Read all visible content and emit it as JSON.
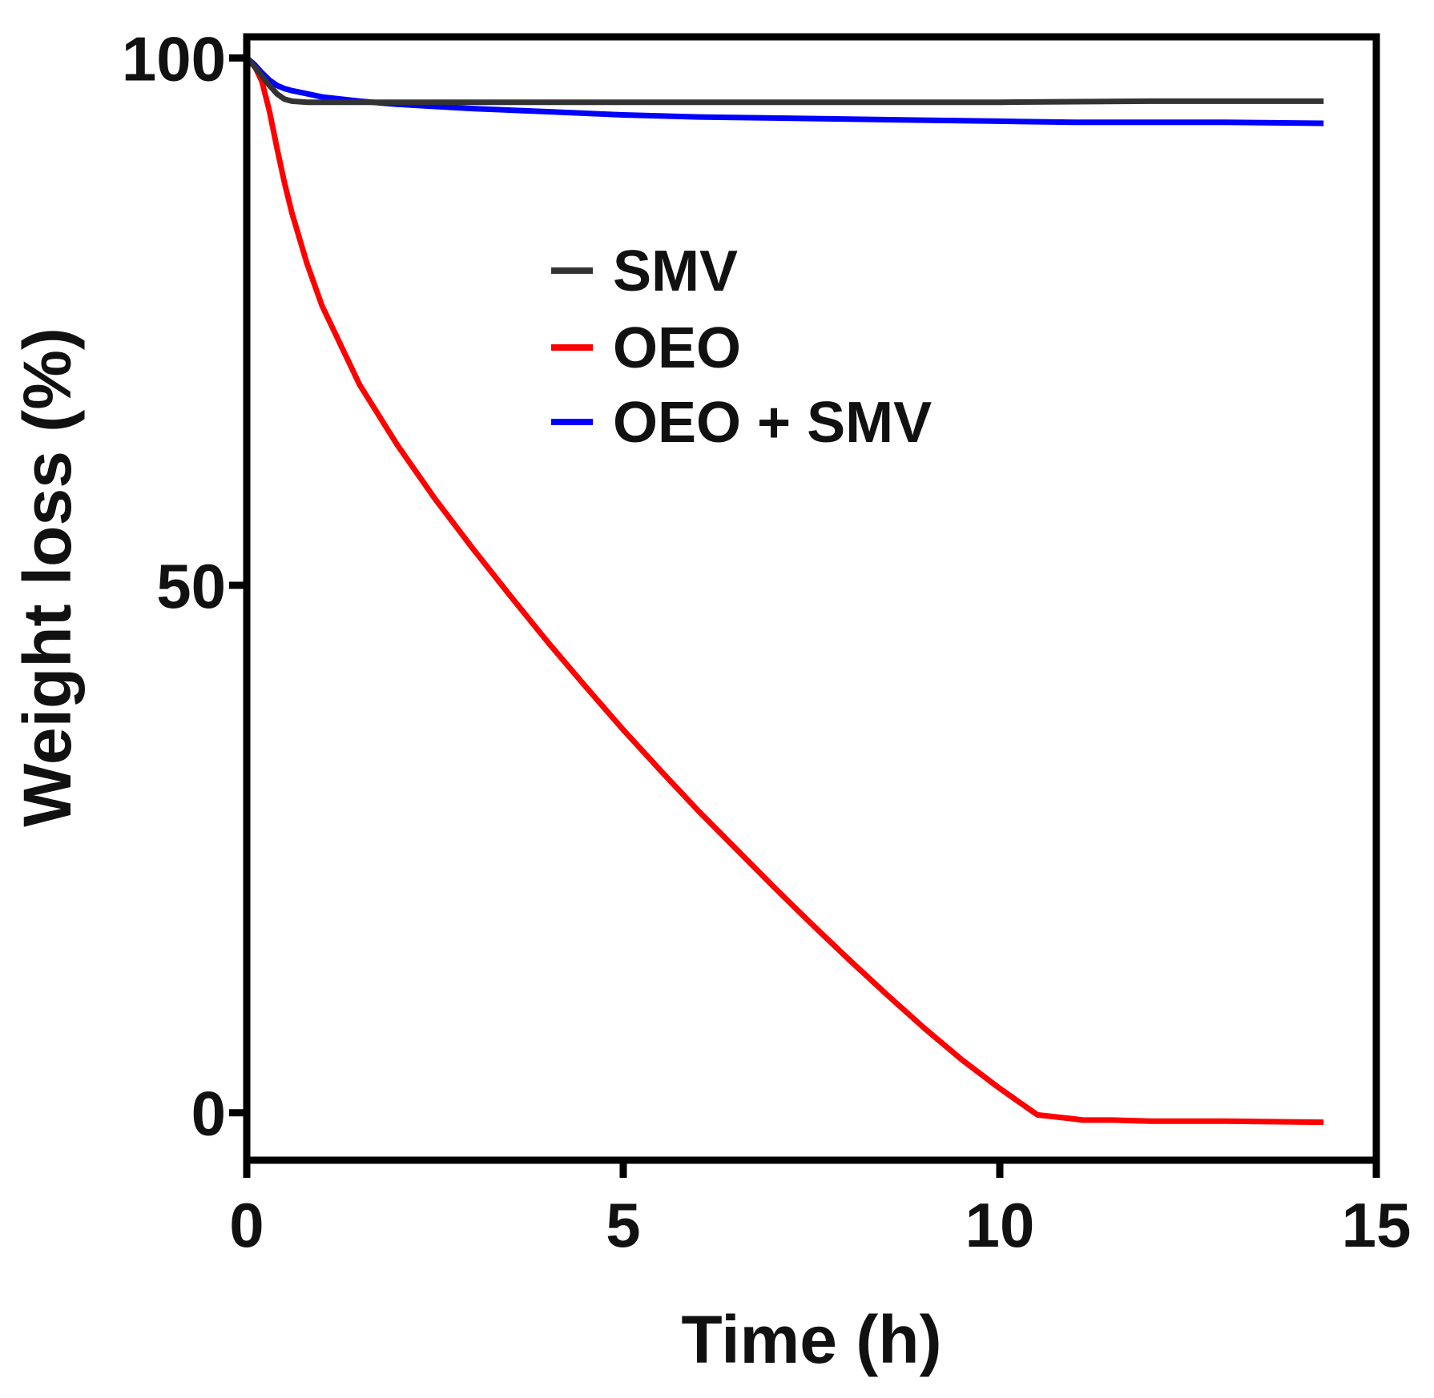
{
  "chart_data": {
    "type": "line",
    "title": "",
    "xlabel": "Time (h)",
    "ylabel": "Weight loss (%)",
    "xlim": [
      0,
      15
    ],
    "ylim": [
      -4.5,
      102
    ],
    "xticks": [
      0,
      5,
      10,
      15
    ],
    "xtick_labels": [
      "0",
      "5",
      "10",
      "15"
    ],
    "yticks": [
      0,
      50,
      100
    ],
    "ytick_labels": [
      "0",
      "50",
      "100"
    ],
    "grid": false,
    "legend_position": "upper-center",
    "series": [
      {
        "name": "SMV",
        "color": "#333333",
        "x": [
          0,
          0.1,
          0.2,
          0.3,
          0.4,
          0.5,
          0.6,
          0.8,
          1.0,
          2.0,
          4.0,
          6.0,
          8.0,
          10.0,
          12.0,
          14.3
        ],
        "y": [
          100,
          99.2,
          98.3,
          97.4,
          96.6,
          96.1,
          95.9,
          95.8,
          95.8,
          95.8,
          95.8,
          95.8,
          95.8,
          95.8,
          95.9,
          95.9
        ]
      },
      {
        "name": "OEO",
        "color": "#ff0000",
        "x": [
          0,
          0.1,
          0.2,
          0.3,
          0.4,
          0.5,
          0.6,
          0.8,
          1.0,
          1.5,
          2.0,
          2.5,
          3.0,
          3.5,
          4.0,
          4.5,
          5.0,
          5.5,
          6.0,
          6.5,
          7.0,
          7.5,
          8.0,
          8.5,
          9.0,
          9.5,
          10.0,
          10.5,
          11.0,
          11.1,
          11.5,
          12.0,
          13.0,
          14.3
        ],
        "y": [
          100,
          99.3,
          97.8,
          95.0,
          91.5,
          88.2,
          85.3,
          80.5,
          76.5,
          69.0,
          63.3,
          58.2,
          53.5,
          49.0,
          44.6,
          40.4,
          36.3,
          32.4,
          28.6,
          25.0,
          21.4,
          17.9,
          14.5,
          11.2,
          8.0,
          5.0,
          2.3,
          -0.2,
          -0.6,
          -0.7,
          -0.7,
          -0.8,
          -0.8,
          -0.9
        ]
      },
      {
        "name": "OEO + SMV",
        "color": "#0000ff",
        "x": [
          0,
          0.1,
          0.2,
          0.3,
          0.4,
          0.5,
          0.6,
          0.8,
          1.0,
          1.5,
          2.0,
          3.0,
          4.0,
          5.0,
          6.0,
          7.0,
          8.0,
          9.0,
          10.0,
          11.0,
          12.0,
          13.0,
          14.3
        ],
        "y": [
          100,
          99.4,
          98.6,
          97.9,
          97.4,
          97.1,
          96.9,
          96.6,
          96.3,
          95.9,
          95.6,
          95.2,
          94.9,
          94.6,
          94.4,
          94.3,
          94.2,
          94.1,
          94.0,
          93.9,
          93.9,
          93.9,
          93.8
        ]
      }
    ]
  }
}
